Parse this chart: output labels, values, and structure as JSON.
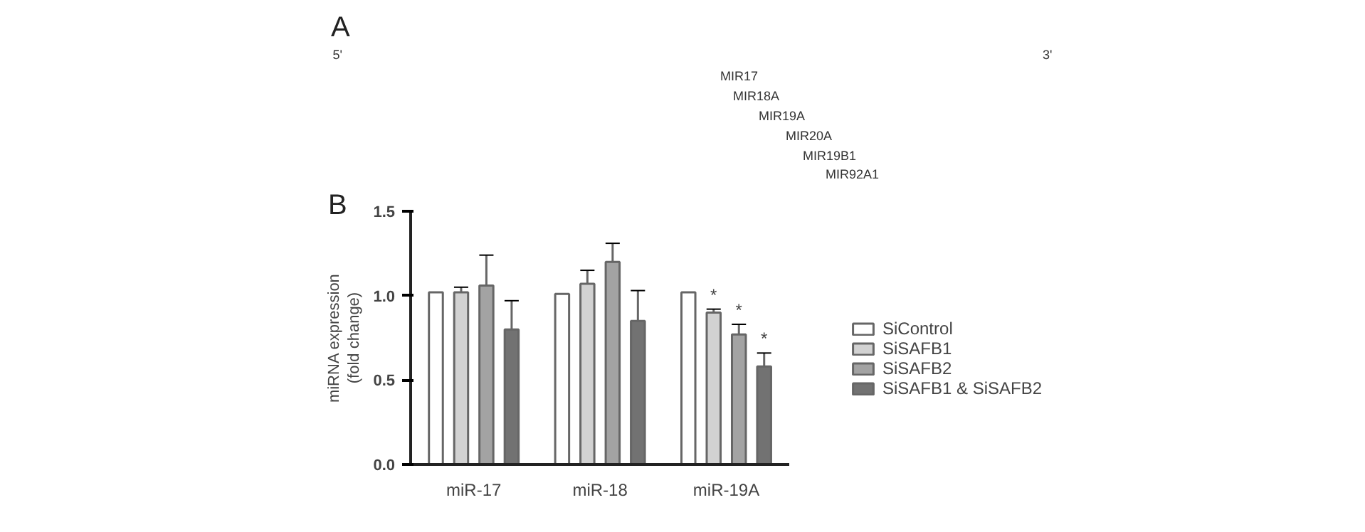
{
  "chart_data": [
    {
      "type": "other",
      "title": "A",
      "annotations": [
        "5'",
        "3'",
        "MIR17",
        "MIR18A",
        "MIR19A",
        "MIR20A",
        "MIR19B1",
        "MIR92A1"
      ]
    },
    {
      "type": "bar",
      "title": "B",
      "ylabel": "miRNA expression\n(fold change)",
      "categories": [
        "miR-17",
        "miR-18",
        "miR-19A"
      ],
      "series": [
        {
          "name": "SiControl",
          "color": "#ffffff",
          "values": [
            1.02,
            1.01,
            1.02
          ]
        },
        {
          "name": "SiSAFB1",
          "color": "#d2d2d2",
          "values": [
            1.02,
            1.07,
            0.9
          ],
          "errors": [
            0.03,
            0.08,
            0.02
          ],
          "value_labels": [
            null,
            null,
            "*"
          ]
        },
        {
          "name": "SiSAFB2",
          "color": "#a3a3a3",
          "values": [
            1.06,
            1.2,
            0.77
          ],
          "errors": [
            0.18,
            0.11,
            0.06
          ],
          "value_labels": [
            null,
            null,
            "*"
          ]
        },
        {
          "name": "SiSAFB1 & SiSAFB2",
          "color": "#727272",
          "values": [
            0.8,
            0.85,
            0.58
          ],
          "errors": [
            0.17,
            0.18,
            0.08
          ],
          "value_labels": [
            null,
            null,
            "*"
          ]
        }
      ],
      "ylim": [
        0,
        1.5
      ],
      "yticks": [
        {
          "value": 0,
          "label": "0.0"
        },
        {
          "value": 0.5,
          "label": "0.5"
        },
        {
          "value": 1,
          "label": "1.0"
        },
        {
          "value": 1.5,
          "label": "1.5"
        }
      ],
      "legend": "right"
    }
  ]
}
